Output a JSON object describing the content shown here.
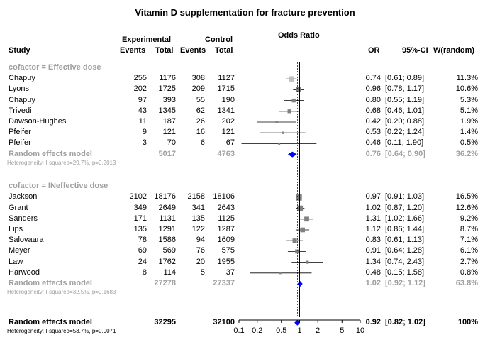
{
  "chart_data": {
    "type": "forest",
    "title": "Vitamin D supplementation for fracture prevention",
    "headers": {
      "study": "Study",
      "group_exp": "Experimental",
      "group_ctrl": "Control",
      "events": "Events",
      "total": "Total",
      "plot": "Odds Ratio",
      "or": "OR",
      "ci": "95%-CI",
      "weight": "W(random)"
    },
    "x_axis": {
      "scale": "log",
      "ticks": [
        "0.1",
        "0.2",
        "0.5",
        "1",
        "2",
        "5",
        "10"
      ],
      "range": [
        0.1,
        10
      ]
    },
    "subgroups": [
      {
        "label": "cofactor = Effective dose",
        "studies": [
          {
            "study": "Chapuy",
            "e_events": "255",
            "e_total": "1176",
            "c_events": "308",
            "c_total": "1127",
            "or": 0.74,
            "lo": 0.61,
            "hi": 0.89,
            "or_text": "0.74",
            "ci_text": "[0.61; 0.89]",
            "weight": "11.3%"
          },
          {
            "study": "Lyons",
            "e_events": "202",
            "e_total": "1725",
            "c_events": "209",
            "c_total": "1715",
            "or": 0.96,
            "lo": 0.78,
            "hi": 1.17,
            "or_text": "0.96",
            "ci_text": "[0.78; 1.17]",
            "weight": "10.6%"
          },
          {
            "study": "Chapuy",
            "e_events": "97",
            "e_total": "393",
            "c_events": "55",
            "c_total": "190",
            "or": 0.8,
            "lo": 0.55,
            "hi": 1.19,
            "or_text": "0.80",
            "ci_text": "[0.55; 1.19]",
            "weight": "5.3%"
          },
          {
            "study": "Trivedi",
            "e_events": "43",
            "e_total": "1345",
            "c_events": "62",
            "c_total": "1341",
            "or": 0.68,
            "lo": 0.46,
            "hi": 1.01,
            "or_text": "0.68",
            "ci_text": "[0.46; 1.01]",
            "weight": "5.1%"
          },
          {
            "study": "Dawson-Hughes",
            "e_events": "11",
            "e_total": "187",
            "c_events": "26",
            "c_total": "202",
            "or": 0.42,
            "lo": 0.2,
            "hi": 0.88,
            "or_text": "0.42",
            "ci_text": "[0.20; 0.88]",
            "weight": "1.9%"
          },
          {
            "study": "Pfeifer",
            "e_events": "9",
            "e_total": "121",
            "c_events": "16",
            "c_total": "121",
            "or": 0.53,
            "lo": 0.22,
            "hi": 1.24,
            "or_text": "0.53",
            "ci_text": "[0.22; 1.24]",
            "weight": "1.4%"
          },
          {
            "study": "Pfeifer",
            "e_events": "3",
            "e_total": "70",
            "c_events": "6",
            "c_total": "67",
            "or": 0.46,
            "lo": 0.11,
            "hi": 1.9,
            "or_text": "0.46",
            "ci_text": "[0.11; 1.90]",
            "weight": "0.5%"
          }
        ],
        "summary": {
          "label": "Random effects model",
          "e_total": "5017",
          "c_total": "4763",
          "or": 0.76,
          "lo": 0.64,
          "hi": 0.9,
          "or_text": "0.76",
          "ci_text": "[0.64; 0.90]",
          "weight": "36.2%"
        },
        "heterogeneity": "Heterogeneity: I-squared=29.7%, p=0.2013"
      },
      {
        "label": "cofactor = INeffective dose",
        "studies": [
          {
            "study": "Jackson",
            "e_events": "2102",
            "e_total": "18176",
            "c_events": "2158",
            "c_total": "18106",
            "or": 0.97,
            "lo": 0.91,
            "hi": 1.03,
            "or_text": "0.97",
            "ci_text": "[0.91; 1.03]",
            "weight": "16.5%"
          },
          {
            "study": "Grant",
            "e_events": "349",
            "e_total": "2649",
            "c_events": "341",
            "c_total": "2643",
            "or": 1.02,
            "lo": 0.87,
            "hi": 1.2,
            "or_text": "1.02",
            "ci_text": "[0.87; 1.20]",
            "weight": "12.6%"
          },
          {
            "study": "Sanders",
            "e_events": "171",
            "e_total": "1131",
            "c_events": "135",
            "c_total": "1125",
            "or": 1.31,
            "lo": 1.02,
            "hi": 1.66,
            "or_text": "1.31",
            "ci_text": "[1.02; 1.66]",
            "weight": "9.2%"
          },
          {
            "study": "Lips",
            "e_events": "135",
            "e_total": "1291",
            "c_events": "122",
            "c_total": "1287",
            "or": 1.12,
            "lo": 0.86,
            "hi": 1.44,
            "or_text": "1.12",
            "ci_text": "[0.86; 1.44]",
            "weight": "8.7%"
          },
          {
            "study": "Salovaara",
            "e_events": "78",
            "e_total": "1586",
            "c_events": "94",
            "c_total": "1609",
            "or": 0.83,
            "lo": 0.61,
            "hi": 1.13,
            "or_text": "0.83",
            "ci_text": "[0.61; 1.13]",
            "weight": "7.1%"
          },
          {
            "study": "Meyer",
            "e_events": "69",
            "e_total": "569",
            "c_events": "76",
            "c_total": "575",
            "or": 0.91,
            "lo": 0.64,
            "hi": 1.28,
            "or_text": "0.91",
            "ci_text": "[0.64; 1.28]",
            "weight": "6.1%"
          },
          {
            "study": "Law",
            "e_events": "24",
            "e_total": "1762",
            "c_events": "20",
            "c_total": "1955",
            "or": 1.34,
            "lo": 0.74,
            "hi": 2.43,
            "or_text": "1.34",
            "ci_text": "[0.74; 2.43]",
            "weight": "2.7%"
          },
          {
            "study": "Harwood",
            "e_events": "8",
            "e_total": "114",
            "c_events": "5",
            "c_total": "37",
            "or": 0.48,
            "lo": 0.15,
            "hi": 1.58,
            "or_text": "0.48",
            "ci_text": "[0.15; 1.58]",
            "weight": "0.8%"
          }
        ],
        "summary": {
          "label": "Random effects model",
          "e_total": "27278",
          "c_total": "27337",
          "or": 1.02,
          "lo": 0.92,
          "hi": 1.12,
          "or_text": "1.02",
          "ci_text": "[0.92; 1.12]",
          "weight": "63.8%"
        },
        "heterogeneity": "Heterogeneity: I-squared=32.5%, p=0.1683"
      }
    ],
    "overall": {
      "label": "Random effects model",
      "e_total": "32295",
      "c_total": "32100",
      "or": 0.92,
      "lo": 0.82,
      "hi": 1.02,
      "or_text": "0.92",
      "ci_text": "[0.82; 1.02]",
      "weight": "100%",
      "heterogeneity": "Heterogeneity: I-squared=53.7%, p=0.0071"
    },
    "colors": {
      "diamond": "#0000ff",
      "subgroup_text": "#a0a0a0",
      "square": "#808080",
      "square_first": "#c0c0c0"
    }
  }
}
